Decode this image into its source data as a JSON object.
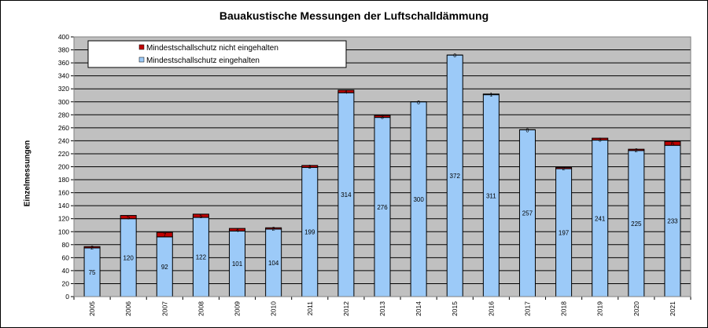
{
  "chart_data": {
    "type": "bar",
    "stacked": true,
    "title": "Bauakustische Messungen der Luftschalldämmung",
    "ylabel": "Einzelmessungen",
    "xlabel": "",
    "ylim": [
      0,
      400
    ],
    "ytick_step": 20,
    "grid": true,
    "legend_position": "top-left",
    "categories": [
      "2005",
      "2006",
      "2007",
      "2008",
      "2009",
      "2010",
      "2011",
      "2012",
      "2013",
      "2014",
      "2015",
      "2016",
      "2017",
      "2018",
      "2019",
      "2020",
      "2021"
    ],
    "series": [
      {
        "name": "Mindestschallschutz eingehalten",
        "color": "#9ccaf8",
        "values": [
          75,
          120,
          92,
          122,
          101,
          104,
          199,
          314,
          276,
          300,
          372,
          311,
          257,
          197,
          241,
          225,
          233
        ],
        "labels": [
          "75",
          "120",
          "92",
          "122",
          "101",
          "104",
          "199",
          "314",
          "276",
          "300",
          "372",
          "311",
          "257",
          "197",
          "241",
          "225",
          "233"
        ]
      },
      {
        "name": "Mindestschallschutz nicht eingehalten",
        "color": "#c00000",
        "values": [
          2,
          5,
          7,
          5,
          4,
          2,
          3,
          4,
          3,
          0,
          0,
          1,
          0,
          2,
          3,
          2,
          6
        ],
        "labels": [
          "2",
          "5",
          "7",
          "5",
          "4",
          "2",
          "3",
          "4",
          "3",
          "0",
          "0",
          "1",
          "0",
          "2",
          "3",
          "2",
          "6"
        ]
      }
    ],
    "legend": [
      {
        "label": "Mindestschallschutz nicht eingehalten",
        "color": "#c00000"
      },
      {
        "label": "Mindestschallschutz eingehalten",
        "color": "#9ccaf8"
      }
    ],
    "plot_background": "#c0c0c0"
  }
}
